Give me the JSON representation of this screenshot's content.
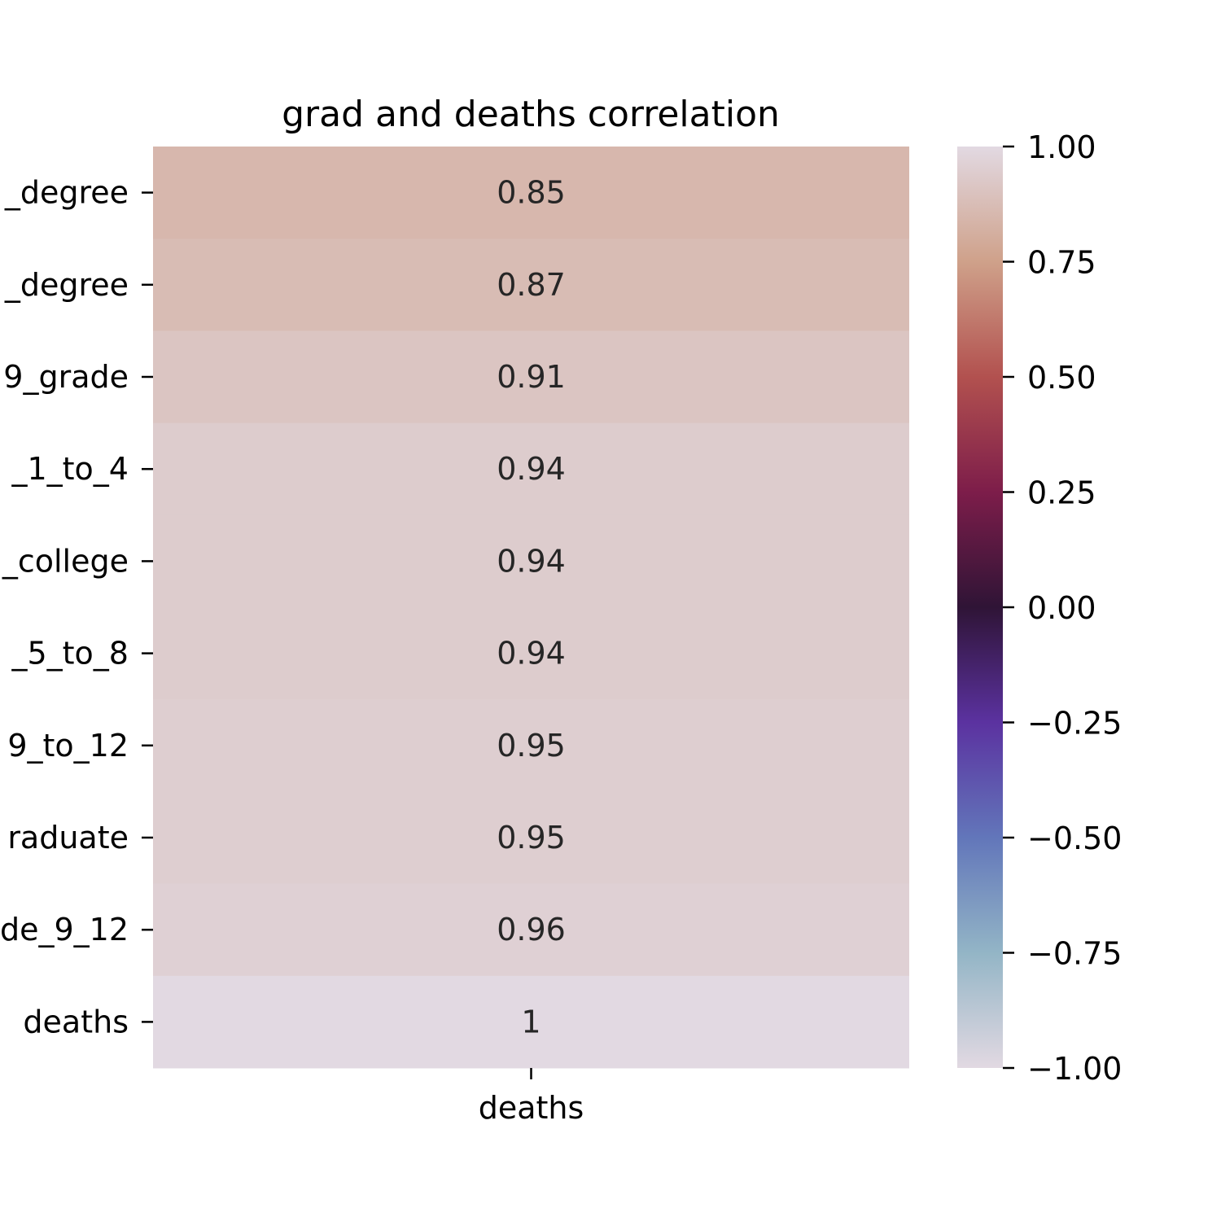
{
  "chart_data": {
    "type": "heatmap",
    "title": "grad and deaths correlation",
    "columns": [
      "deaths"
    ],
    "rows": [
      "_degree",
      "_degree",
      "9_grade",
      "_1_to_4",
      "_college",
      "_5_to_8",
      "9_to_12",
      "raduate",
      "de_9_12",
      "deaths"
    ],
    "values": [
      0.85,
      0.87,
      0.91,
      0.94,
      0.94,
      0.94,
      0.95,
      0.95,
      0.96,
      1.0
    ],
    "cell_labels": [
      "0.85",
      "0.87",
      "0.91",
      "0.94",
      "0.94",
      "0.94",
      "0.95",
      "0.95",
      "0.96",
      "1"
    ],
    "colorbar": {
      "range": [
        -1.0,
        1.0
      ],
      "ticks": [
        1.0,
        0.75,
        0.5,
        0.25,
        0.0,
        -0.25,
        -0.5,
        -0.75,
        -1.0
      ],
      "tick_labels": [
        "1.00",
        "0.75",
        "0.50",
        "0.25",
        "0.00",
        "−0.25",
        "−0.50",
        "−0.75",
        "−1.00"
      ]
    },
    "colormap_stops": [
      {
        "v": -1.0,
        "color": "#e2d9e2"
      },
      {
        "v": -0.75,
        "color": "#93b5c6"
      },
      {
        "v": -0.5,
        "color": "#6276ba"
      },
      {
        "v": -0.25,
        "color": "#5b32a0"
      },
      {
        "v": 0.0,
        "color": "#2f1436"
      },
      {
        "v": 0.25,
        "color": "#7d1d4a"
      },
      {
        "v": 0.5,
        "color": "#b2514f"
      },
      {
        "v": 0.75,
        "color": "#cfa18a"
      },
      {
        "v": 1.0,
        "color": "#e2d9e2"
      }
    ]
  }
}
